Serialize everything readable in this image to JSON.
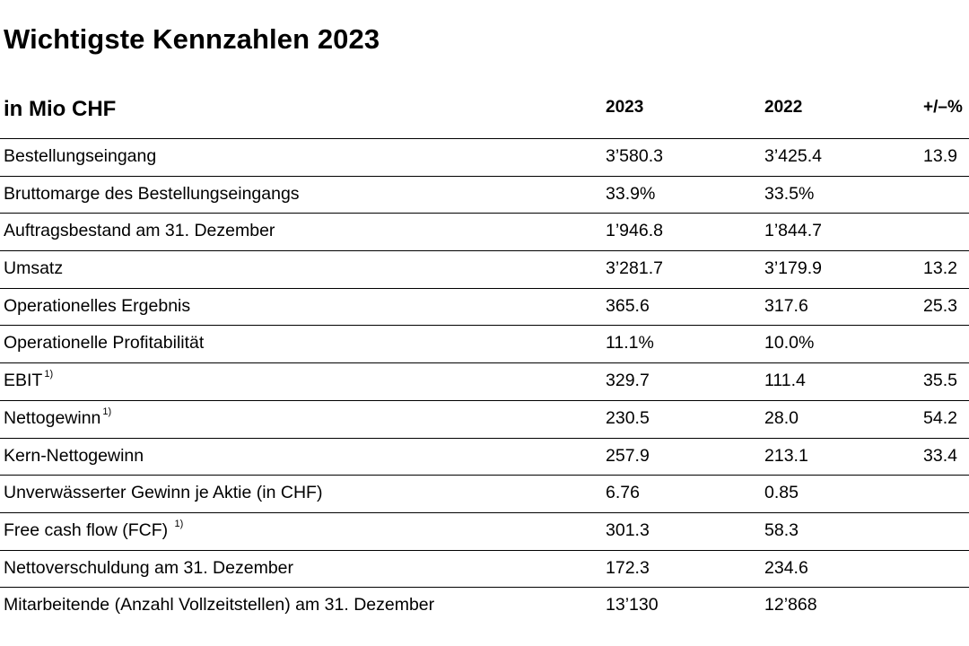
{
  "title": "Wichtigste Kennzahlen 2023",
  "unit_label": "in Mio CHF",
  "columns": {
    "y2023": "2023",
    "y2022": "2022",
    "change": "+/–%"
  },
  "rows": [
    {
      "label": "Bestellungseingang",
      "footnote": "",
      "v2023": "3’580.3",
      "v2022": "3’425.4",
      "change": "13.9"
    },
    {
      "label": "Bruttomarge des Bestellungseingangs",
      "footnote": "",
      "v2023": "33.9%",
      "v2022": "33.5%",
      "change": ""
    },
    {
      "label": "Auftragsbestand am 31. Dezember",
      "footnote": "",
      "v2023": "1’946.8",
      "v2022": "1’844.7",
      "change": ""
    },
    {
      "label": "Umsatz",
      "footnote": "",
      "v2023": "3’281.7",
      "v2022": "3’179.9",
      "change": "13.2"
    },
    {
      "label": "Operationelles Ergebnis",
      "footnote": "",
      "v2023": "365.6",
      "v2022": "317.6",
      "change": "25.3"
    },
    {
      "label": "Operationelle Profitabilität",
      "footnote": "",
      "v2023": "11.1%",
      "v2022": "10.0%",
      "change": ""
    },
    {
      "label": "EBIT",
      "footnote": "1)",
      "v2023": "329.7",
      "v2022": "111.4",
      "change": "35.5"
    },
    {
      "label": "Nettogewinn",
      "footnote": "1)",
      "v2023": "230.5",
      "v2022": "28.0",
      "change": "54.2"
    },
    {
      "label": "Kern-Nettogewinn",
      "footnote": "",
      "v2023": "257.9",
      "v2022": "213.1",
      "change": "33.4"
    },
    {
      "label": "Unverwässerter Gewinn je Aktie (in CHF)",
      "footnote": "",
      "v2023": "6.76",
      "v2022": "0.85",
      "change": ""
    },
    {
      "label": "Free cash flow (FCF) ",
      "footnote": "1)",
      "v2023": "301.3",
      "v2022": "58.3",
      "change": ""
    },
    {
      "label": "Nettoverschuldung am 31. Dezember",
      "footnote": "",
      "v2023": "172.3",
      "v2022": "234.6",
      "change": ""
    },
    {
      "label": "Mitarbeitende (Anzahl Vollzeitstellen) am 31. Dezember",
      "footnote": "",
      "v2023": "13’130",
      "v2022": "12’868",
      "change": ""
    }
  ]
}
